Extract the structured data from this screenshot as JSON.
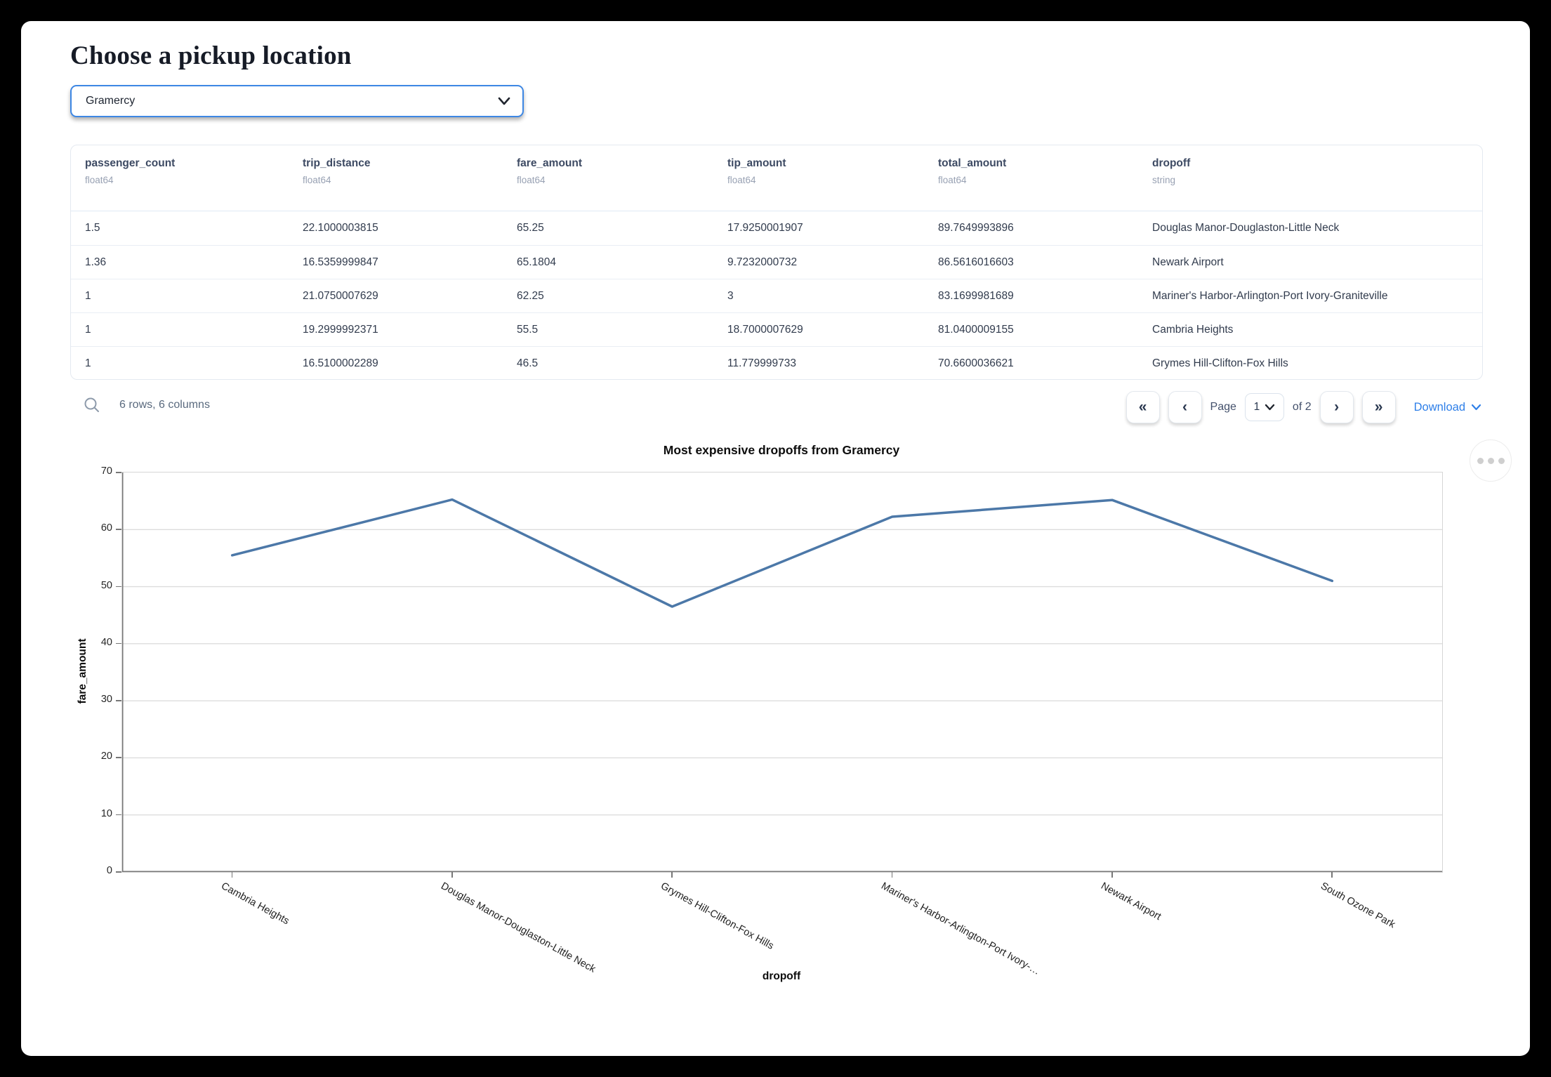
{
  "page": {
    "title": "Choose a pickup location"
  },
  "pickup_select": {
    "value": "Gramercy",
    "icon": "chevron-down-icon"
  },
  "table": {
    "columns": [
      {
        "name": "passenger_count",
        "type": "float64"
      },
      {
        "name": "trip_distance",
        "type": "float64"
      },
      {
        "name": "fare_amount",
        "type": "float64"
      },
      {
        "name": "tip_amount",
        "type": "float64"
      },
      {
        "name": "total_amount",
        "type": "float64"
      },
      {
        "name": "dropoff",
        "type": "string"
      }
    ],
    "rows": [
      [
        "1.5",
        "22.1000003815",
        "65.25",
        "17.9250001907",
        "89.7649993896",
        "Douglas Manor-Douglaston-Little Neck"
      ],
      [
        "1.36",
        "16.5359999847",
        "65.1804",
        "9.7232000732",
        "86.5616016603",
        "Newark Airport"
      ],
      [
        "1",
        "21.0750007629",
        "62.25",
        "3",
        "83.1699981689",
        "Mariner's Harbor-Arlington-Port Ivory-Graniteville"
      ],
      [
        "1",
        "19.2999992371",
        "55.5",
        "18.7000007629",
        "81.0400009155",
        "Cambria Heights"
      ],
      [
        "1",
        "16.5100002289",
        "46.5",
        "11.779999733",
        "70.6600036621",
        "Grymes Hill-Clifton-Fox Hills"
      ]
    ]
  },
  "table_footer": {
    "search_icon": "search-icon",
    "summary": "6 rows, 6 columns",
    "first_page_icon": "«",
    "prev_page_icon": "‹",
    "next_page_icon": "›",
    "last_page_icon": "»",
    "page_label": "Page",
    "page_value": "1",
    "page_total_label": "of 2",
    "download_label": "Download"
  },
  "chart_menu_icon": "ellipsis-icon",
  "chart_data": {
    "type": "line",
    "title": "Most expensive dropoffs from Gramercy",
    "x": [
      "Cambria Heights",
      "Douglas Manor-Douglaston-Little Neck",
      "Grymes Hill-Clifton-Fox Hills",
      "Mariner's Harbor-Arlington-Port Ivory-…",
      "Newark Airport",
      "South Ozone Park"
    ],
    "values": [
      55.5,
      65.25,
      46.5,
      62.25,
      65.1804,
      51.0
    ],
    "xlabel": "dropoff",
    "ylabel": "fare_amount",
    "ylim": [
      0,
      70
    ],
    "yticks": [
      0,
      10,
      20,
      30,
      40,
      50,
      60,
      70
    ],
    "grid": true,
    "legend": "none",
    "line_color": "#4c78a8"
  },
  "colors": {
    "accent": "#3d87e4",
    "link": "#2e7fe8",
    "grid": "#dddddd",
    "axis": "#777777"
  }
}
